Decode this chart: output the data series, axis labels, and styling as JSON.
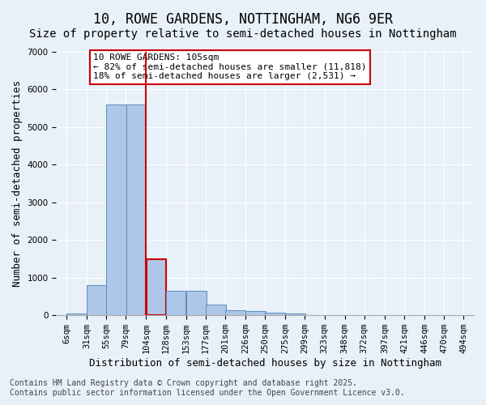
{
  "title": "10, ROWE GARDENS, NOTTINGHAM, NG6 9ER",
  "subtitle": "Size of property relative to semi-detached houses in Nottingham",
  "xlabel": "Distribution of semi-detached houses by size in Nottingham",
  "ylabel": "Number of semi-detached properties",
  "footer_line1": "Contains HM Land Registry data © Crown copyright and database right 2025.",
  "footer_line2": "Contains public sector information licensed under the Open Government Licence v3.0.",
  "property_size": 105,
  "annotation_title": "10 ROWE GARDENS: 105sqm",
  "annotation_line1": "← 82% of semi-detached houses are smaller (11,818)",
  "annotation_line2": "18% of semi-detached houses are larger (2,531) →",
  "bin_labels": [
    "6sqm",
    "31sqm",
    "55sqm",
    "79sqm",
    "104sqm",
    "128sqm",
    "153sqm",
    "177sqm",
    "201sqm",
    "226sqm",
    "250sqm",
    "275sqm",
    "299sqm",
    "323sqm",
    "348sqm",
    "372sqm",
    "397sqm",
    "421sqm",
    "446sqm",
    "470sqm",
    "494sqm"
  ],
  "bin_edges": [
    6,
    31,
    55,
    79,
    104,
    128,
    153,
    177,
    201,
    226,
    250,
    275,
    299,
    323,
    348,
    372,
    397,
    421,
    446,
    470,
    494
  ],
  "bar_values": [
    50,
    800,
    5600,
    5600,
    1480,
    650,
    650,
    290,
    130,
    120,
    70,
    40,
    0,
    0,
    0,
    0,
    0,
    0,
    0,
    0
  ],
  "bar_color": "#aec6e8",
  "bar_edge_color": "#5a8fc0",
  "highlight_bar_index": 4,
  "highlight_bar_color": "#aec6e8",
  "highlight_bar_edge_color": "#cc0000",
  "vline_x": 104,
  "vline_color": "#cc0000",
  "ylim": [
    0,
    7000
  ],
  "yticks": [
    0,
    1000,
    2000,
    3000,
    4000,
    5000,
    6000,
    7000
  ],
  "background_color": "#e8f0f8",
  "plot_bg_color": "#e8f0f8",
  "grid_color": "#ffffff",
  "title_fontsize": 12,
  "subtitle_fontsize": 10,
  "ylabel_fontsize": 9,
  "xlabel_fontsize": 9,
  "tick_fontsize": 7.5,
  "annotation_fontsize": 8,
  "footer_fontsize": 7
}
